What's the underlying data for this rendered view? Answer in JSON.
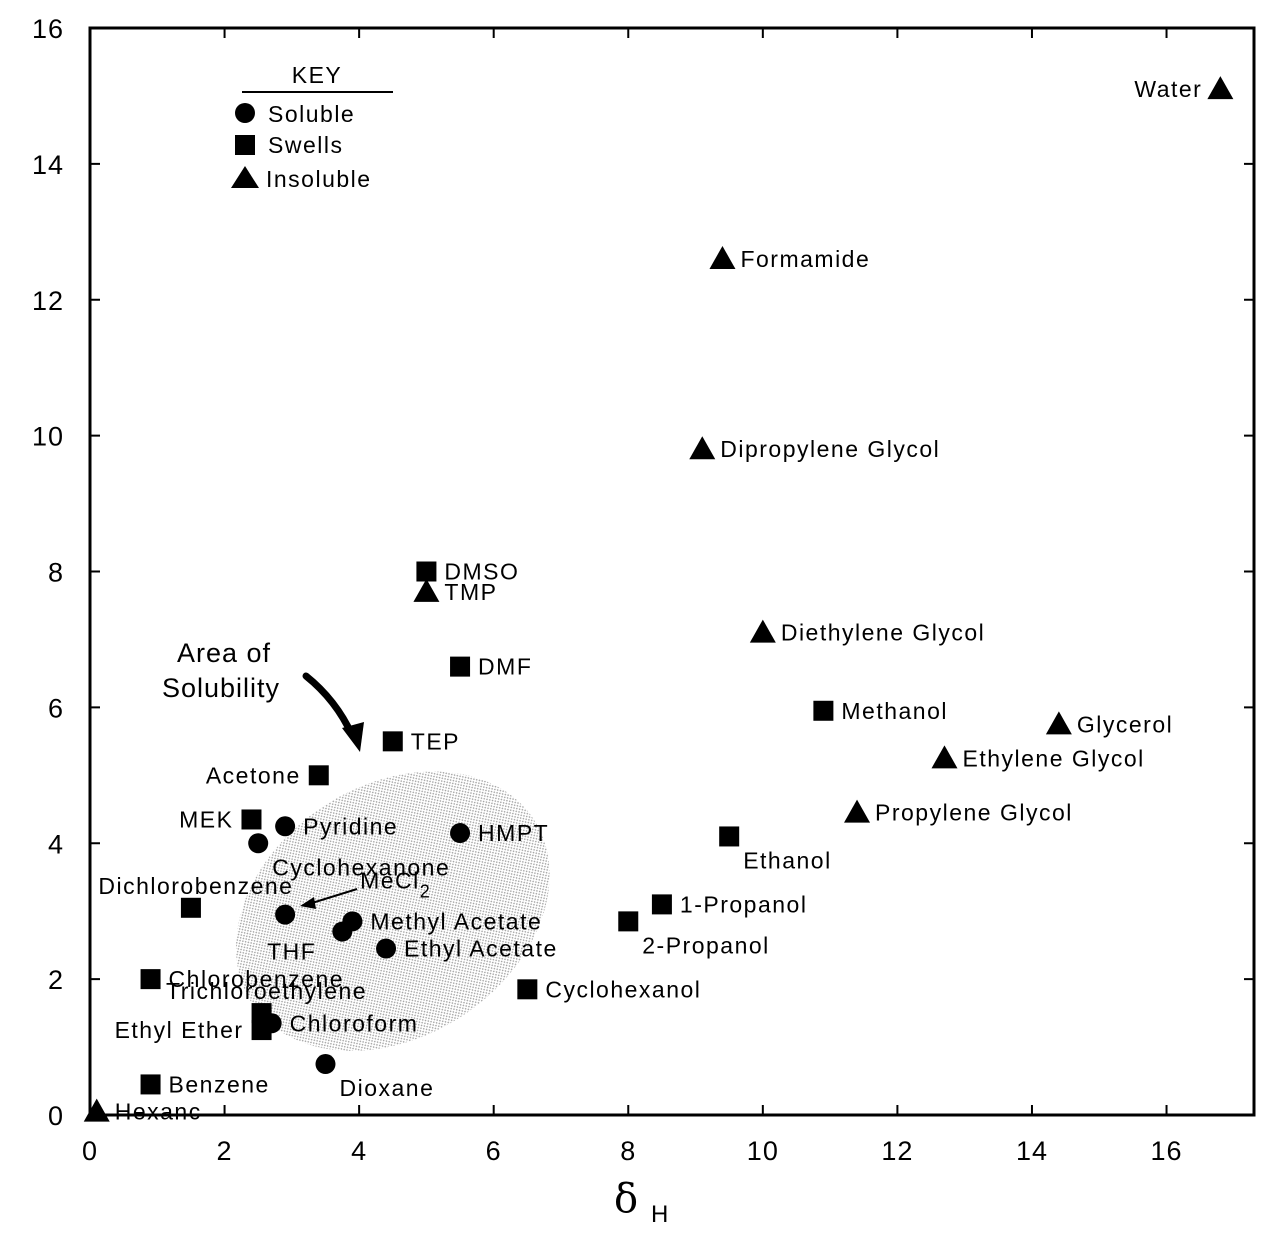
{
  "chart_data": {
    "type": "scatter",
    "xlabel": "δ",
    "xlabel_subscript": "H",
    "ylabel": "",
    "xlim": [
      0,
      17.3
    ],
    "ylim": [
      0,
      16
    ],
    "xticks": [
      "0",
      "2",
      "4",
      "6",
      "8",
      "10",
      "12",
      "14",
      "16"
    ],
    "yticks": [
      "0",
      "2",
      "4",
      "6",
      "8",
      "10",
      "12",
      "14",
      "16"
    ],
    "grid": false,
    "legend": {
      "title": "KEY",
      "placement": "top-left",
      "entries": [
        {
          "name": "Soluble",
          "marker": "circle"
        },
        {
          "name": "Swells",
          "marker": "square"
        },
        {
          "name": "Insoluble",
          "marker": "triangle"
        }
      ]
    },
    "annotation": {
      "lines": [
        "Area of",
        "Solubility"
      ]
    },
    "solubility_region": {
      "center": [
        4.5,
        3.0
      ],
      "rx": 2.5,
      "ry": 1.85,
      "rotation_deg": -33
    },
    "points": [
      {
        "name": "Water",
        "x": 16.8,
        "y": 15.1,
        "marker": "triangle",
        "label_side": "left"
      },
      {
        "name": "Formamide",
        "x": 9.4,
        "y": 12.6,
        "marker": "triangle",
        "label_side": "right"
      },
      {
        "name": "Dipropylene Glycol",
        "x": 9.1,
        "y": 9.8,
        "marker": "triangle",
        "label_side": "right"
      },
      {
        "name": "Diethylene Glycol",
        "x": 10.0,
        "y": 7.1,
        "marker": "triangle",
        "label_side": "right"
      },
      {
        "name": "Glycerol",
        "x": 14.4,
        "y": 5.75,
        "marker": "triangle",
        "label_side": "right"
      },
      {
        "name": "Ethylene Glycol",
        "x": 12.7,
        "y": 5.25,
        "marker": "triangle",
        "label_side": "right"
      },
      {
        "name": "Propylene Glycol",
        "x": 11.4,
        "y": 4.45,
        "marker": "triangle",
        "label_side": "right"
      },
      {
        "name": "TMP",
        "x": 5.0,
        "y": 7.7,
        "marker": "triangle",
        "label_side": "right"
      },
      {
        "name": "Hexane",
        "x": 0.1,
        "y": 0.05,
        "marker": "triangle",
        "label_side": "right",
        "label_text": "Hexanc"
      },
      {
        "name": "DMSO",
        "x": 5.0,
        "y": 8.0,
        "marker": "square",
        "label_side": "right"
      },
      {
        "name": "DMF",
        "x": 5.5,
        "y": 6.6,
        "marker": "square",
        "label_side": "right"
      },
      {
        "name": "TEP",
        "x": 4.5,
        "y": 5.5,
        "marker": "square",
        "label_side": "right"
      },
      {
        "name": "Acetone",
        "x": 3.4,
        "y": 5.0,
        "marker": "square",
        "label_side": "left"
      },
      {
        "name": "MEK",
        "x": 2.4,
        "y": 4.35,
        "marker": "square",
        "label_side": "left"
      },
      {
        "name": "Methanol",
        "x": 10.9,
        "y": 5.95,
        "marker": "square",
        "label_side": "right"
      },
      {
        "name": "Ethanol",
        "x": 9.5,
        "y": 4.1,
        "marker": "square",
        "label_side": "below-right"
      },
      {
        "name": "1-Propanol",
        "x": 8.5,
        "y": 3.1,
        "marker": "square",
        "label_side": "right"
      },
      {
        "name": "2-Propanol",
        "x": 8.0,
        "y": 2.85,
        "marker": "square",
        "label_side": "below-right"
      },
      {
        "name": "Cyclohexanol",
        "x": 6.5,
        "y": 1.85,
        "marker": "square",
        "label_side": "right"
      },
      {
        "name": "Dichlorobenzene",
        "x": 1.5,
        "y": 3.05,
        "marker": "square",
        "label_side": "above-left"
      },
      {
        "name": "Chlorobenzene",
        "x": 0.9,
        "y": 2.0,
        "marker": "square",
        "label_side": "right"
      },
      {
        "name": "Trichloroethylene",
        "x": 2.55,
        "y": 1.5,
        "marker": "square",
        "label_side": "above-left"
      },
      {
        "name": "Ethyl Ether",
        "x": 2.55,
        "y": 1.25,
        "marker": "square",
        "label_side": "left"
      },
      {
        "name": "Benzene",
        "x": 0.9,
        "y": 0.45,
        "marker": "square",
        "label_side": "right"
      },
      {
        "name": "Pyridine",
        "x": 2.9,
        "y": 4.25,
        "marker": "circle",
        "label_side": "right"
      },
      {
        "name": "Cyclohexanone",
        "x": 2.5,
        "y": 4.0,
        "marker": "circle",
        "label_side": "below-right"
      },
      {
        "name": "HMPT",
        "x": 5.5,
        "y": 4.15,
        "marker": "circle",
        "label_side": "right"
      },
      {
        "name": "MeCl2",
        "x": 2.9,
        "y": 2.95,
        "marker": "circle",
        "label_side": "custom"
      },
      {
        "name": "Methyl Acetate",
        "x": 3.9,
        "y": 2.85,
        "marker": "circle",
        "label_side": "right"
      },
      {
        "name": "THF",
        "x": 3.75,
        "y": 2.7,
        "marker": "circle",
        "label_side": "below-left"
      },
      {
        "name": "Ethyl Acetate",
        "x": 4.4,
        "y": 2.45,
        "marker": "circle",
        "label_side": "right"
      },
      {
        "name": "Chloroform",
        "x": 2.7,
        "y": 1.35,
        "marker": "circle",
        "label_side": "right"
      },
      {
        "name": "Dioxane",
        "x": 3.5,
        "y": 0.75,
        "marker": "circle",
        "label_side": "below-right"
      }
    ]
  }
}
